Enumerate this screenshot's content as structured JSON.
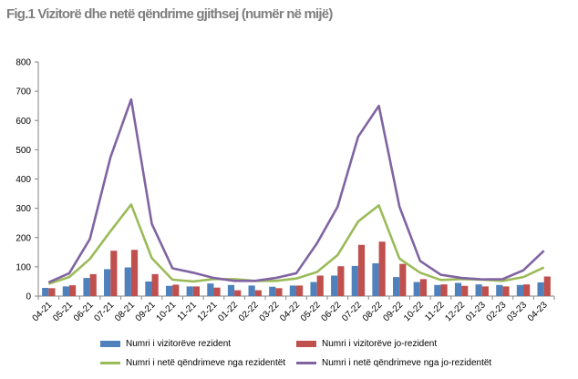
{
  "chart_data": {
    "type": "bar+line",
    "title": "Fig.1 Vizitorë dhe netë qëndrime gjithsej (numër në mijë)",
    "categories": [
      "04-21",
      "05-21",
      "06-21",
      "07-21",
      "08-21",
      "09-21",
      "10-21",
      "11-21",
      "12-21",
      "01-22",
      "02-22",
      "03-22",
      "04-22",
      "05-22",
      "06-22",
      "07-22",
      "08-22",
      "09-22",
      "10-22",
      "11-22",
      "12-22",
      "01-23",
      "02-23",
      "03-23",
      "04-23"
    ],
    "ylim": [
      0,
      800
    ],
    "yticks": [
      "0",
      "100",
      "200",
      "300",
      "400",
      "500",
      "600",
      "700",
      "800"
    ],
    "series": [
      {
        "name": "Numri i vizitorëve rezident",
        "kind": "bar",
        "color": "#4F81BD",
        "values": [
          28,
          33,
          62,
          92,
          98,
          50,
          35,
          33,
          43,
          38,
          36,
          32,
          36,
          48,
          70,
          103,
          112,
          65,
          48,
          38,
          45,
          40,
          38,
          38,
          47
        ]
      },
      {
        "name": "Numri i vizitorëve jo-rezident",
        "kind": "bar",
        "color": "#C0504D",
        "values": [
          27,
          37,
          75,
          155,
          158,
          75,
          39,
          33,
          29,
          20,
          20,
          27,
          36,
          70,
          102,
          175,
          186,
          110,
          58,
          40,
          35,
          33,
          33,
          40,
          67
        ]
      },
      {
        "name": "Numri i netë qëndrimeve nga rezidentët",
        "kind": "line",
        "color": "#9BBB59",
        "values": [
          42,
          65,
          127,
          222,
          313,
          130,
          56,
          50,
          58,
          58,
          52,
          52,
          60,
          82,
          140,
          255,
          310,
          128,
          80,
          55,
          58,
          56,
          52,
          65,
          98
        ]
      },
      {
        "name": "Numri i netë qëndrimeve nga jo-rezidentët",
        "kind": "line",
        "color": "#8064A2",
        "values": [
          47,
          78,
          195,
          475,
          672,
          247,
          95,
          80,
          62,
          52,
          52,
          62,
          78,
          180,
          305,
          545,
          650,
          305,
          120,
          73,
          62,
          57,
          58,
          88,
          155
        ]
      }
    ],
    "legend": "bottom",
    "grid": false
  }
}
